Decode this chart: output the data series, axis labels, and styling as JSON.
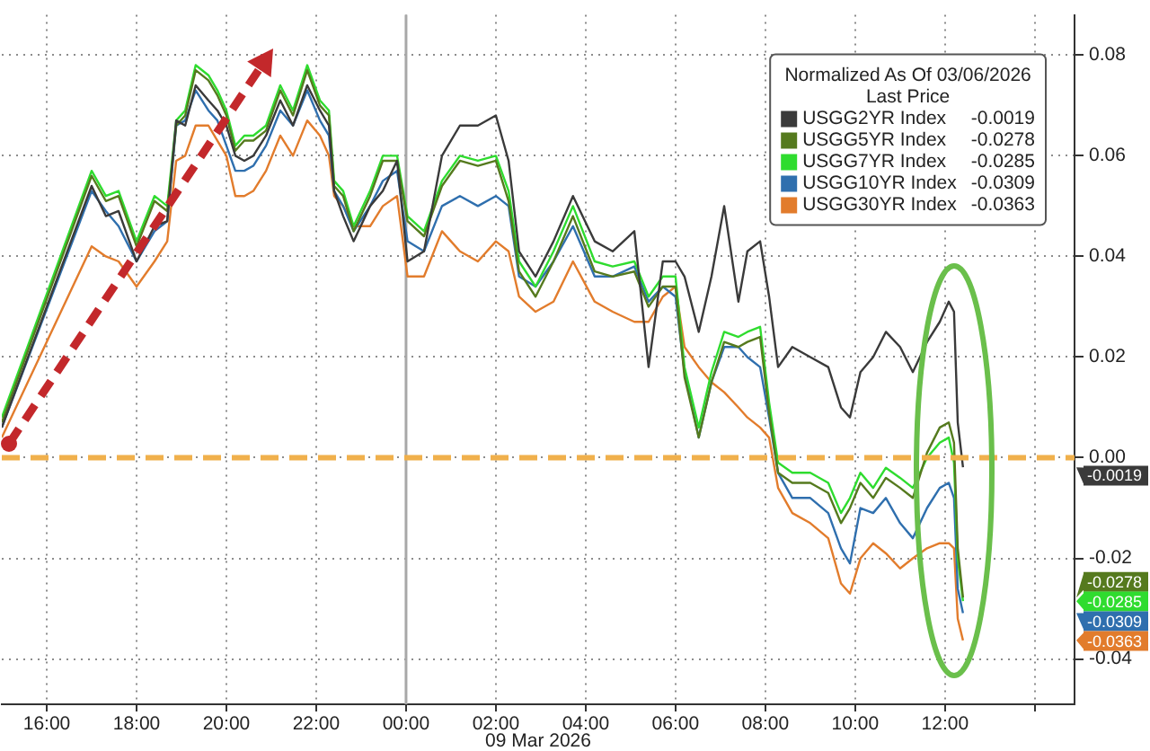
{
  "chart_data": {
    "type": "line",
    "legend_title": "Normalized As Of 03/06/2026\nLast Price",
    "xlabel": "09 Mar 2026",
    "x": [
      "2026-03-08T15:00",
      "2026-03-08T17:00",
      "2026-03-08T17:19",
      "2026-03-08T17:36",
      "2026-03-08T18:00",
      "2026-03-08T18:24",
      "2026-03-08T18:41",
      "2026-03-08T18:53",
      "2026-03-08T19:05",
      "2026-03-08T19:19",
      "2026-03-08T19:36",
      "2026-03-08T19:48",
      "2026-03-08T20:00",
      "2026-03-08T20:12",
      "2026-03-08T20:24",
      "2026-03-08T20:36",
      "2026-03-08T20:53",
      "2026-03-08T21:12",
      "2026-03-08T21:29",
      "2026-03-08T21:48",
      "2026-03-08T22:05",
      "2026-03-08T22:17",
      "2026-03-08T22:24",
      "2026-03-08T22:36",
      "2026-03-08T22:50",
      "2026-03-08T23:12",
      "2026-03-08T23:29",
      "2026-03-08T23:48",
      "2026-03-09T00:02",
      "2026-03-09T00:24",
      "2026-03-09T00:48",
      "2026-03-09T01:12",
      "2026-03-09T01:36",
      "2026-03-09T02:00",
      "2026-03-09T02:17",
      "2026-03-09T02:31",
      "2026-03-09T02:53",
      "2026-03-09T03:17",
      "2026-03-09T03:43",
      "2026-03-09T04:12",
      "2026-03-09T04:36",
      "2026-03-09T05:05",
      "2026-03-09T05:24",
      "2026-03-09T05:43",
      "2026-03-09T06:00",
      "2026-03-09T06:12",
      "2026-03-09T06:31",
      "2026-03-09T06:48",
      "2026-03-09T07:05",
      "2026-03-09T07:24",
      "2026-03-09T07:36",
      "2026-03-09T07:53",
      "2026-03-09T08:05",
      "2026-03-09T08:17",
      "2026-03-09T08:36",
      "2026-03-09T09:00",
      "2026-03-09T09:24",
      "2026-03-09T09:41",
      "2026-03-09T09:53",
      "2026-03-09T10:07",
      "2026-03-09T10:24",
      "2026-03-09T10:41",
      "2026-03-09T11:00",
      "2026-03-09T11:17",
      "2026-03-09T11:36",
      "2026-03-09T11:53",
      "2026-03-09T12:05",
      "2026-03-09T12:12",
      "2026-03-09T12:17",
      "2026-03-09T12:24"
    ],
    "series": [
      {
        "name": "USGG2YR Index",
        "color": "#3a3a3a",
        "values": [
          0.006,
          0.054,
          0.048,
          0.049,
          0.039,
          0.046,
          0.047,
          0.067,
          0.066,
          0.074,
          0.071,
          0.069,
          0.066,
          0.06,
          0.059,
          0.06,
          0.064,
          0.071,
          0.066,
          0.074,
          0.069,
          0.066,
          0.053,
          0.048,
          0.043,
          0.05,
          0.053,
          0.059,
          0.039,
          0.041,
          0.06,
          0.066,
          0.066,
          0.068,
          0.059,
          0.041,
          0.036,
          0.043,
          0.052,
          0.043,
          0.041,
          0.045,
          0.018,
          0.039,
          0.039,
          0.036,
          0.025,
          0.036,
          0.05,
          0.031,
          0.041,
          0.043,
          0.032,
          0.018,
          0.022,
          0.02,
          0.018,
          0.01,
          0.008,
          0.017,
          0.02,
          0.025,
          0.022,
          0.017,
          0.023,
          0.027,
          0.031,
          0.029,
          0.007,
          -0.0019
        ]
      },
      {
        "name": "USGG5YR Index",
        "color": "#557a1e",
        "values": [
          0.007,
          0.056,
          0.051,
          0.052,
          0.042,
          0.051,
          0.049,
          0.066,
          0.068,
          0.077,
          0.075,
          0.072,
          0.068,
          0.061,
          0.063,
          0.063,
          0.065,
          0.073,
          0.068,
          0.077,
          0.07,
          0.068,
          0.054,
          0.052,
          0.045,
          0.052,
          0.059,
          0.059,
          0.047,
          0.044,
          0.054,
          0.059,
          0.058,
          0.059,
          0.051,
          0.037,
          0.032,
          0.039,
          0.048,
          0.037,
          0.036,
          0.037,
          0.03,
          0.034,
          0.034,
          0.016,
          0.004,
          0.015,
          0.023,
          0.022,
          0.023,
          0.024,
          0.009,
          -0.003,
          -0.005,
          -0.005,
          -0.007,
          -0.013,
          -0.01,
          -0.005,
          -0.008,
          -0.004,
          -0.006,
          -0.008,
          0.001,
          0.006,
          0.007,
          0.003,
          -0.018,
          -0.0278
        ]
      },
      {
        "name": "USGG7YR Index",
        "color": "#2fdc2f",
        "values": [
          0.008,
          0.057,
          0.052,
          0.053,
          0.043,
          0.052,
          0.05,
          0.067,
          0.069,
          0.078,
          0.076,
          0.073,
          0.069,
          0.062,
          0.064,
          0.064,
          0.066,
          0.074,
          0.069,
          0.078,
          0.071,
          0.069,
          0.055,
          0.053,
          0.046,
          0.053,
          0.06,
          0.06,
          0.048,
          0.045,
          0.055,
          0.06,
          0.059,
          0.06,
          0.053,
          0.039,
          0.034,
          0.041,
          0.05,
          0.039,
          0.038,
          0.039,
          0.032,
          0.036,
          0.036,
          0.018,
          0.006,
          0.017,
          0.025,
          0.024,
          0.025,
          0.026,
          0.011,
          -0.001,
          -0.003,
          -0.003,
          -0.005,
          -0.011,
          -0.008,
          -0.003,
          -0.006,
          -0.002,
          -0.004,
          -0.006,
          0,
          0.003,
          0.004,
          -0.001,
          -0.02,
          -0.0285
        ]
      },
      {
        "name": "USGG10YR Index",
        "color": "#2f6fae",
        "values": [
          0.006,
          0.053,
          0.049,
          0.046,
          0.039,
          0.045,
          0.047,
          0.066,
          0.067,
          0.073,
          0.069,
          0.067,
          0.062,
          0.057,
          0.057,
          0.058,
          0.062,
          0.069,
          0.066,
          0.073,
          0.067,
          0.064,
          0.053,
          0.05,
          0.045,
          0.05,
          0.055,
          0.057,
          0.043,
          0.041,
          0.05,
          0.052,
          0.05,
          0.052,
          0.05,
          0.036,
          0.034,
          0.039,
          0.046,
          0.036,
          0.036,
          0.038,
          0.031,
          0.034,
          0.032,
          0.017,
          0.004,
          0.015,
          0.022,
          0.022,
          0.02,
          0.018,
          0.008,
          -0.003,
          -0.008,
          -0.008,
          -0.011,
          -0.018,
          -0.021,
          -0.01,
          -0.011,
          -0.008,
          -0.013,
          -0.016,
          -0.01,
          -0.006,
          -0.005,
          -0.008,
          -0.026,
          -0.0309
        ]
      },
      {
        "name": "USGG30YR Index",
        "color": "#e27c2c",
        "values": [
          0.004,
          0.042,
          0.04,
          0.039,
          0.034,
          0.039,
          0.043,
          0.059,
          0.06,
          0.066,
          0.066,
          0.063,
          0.06,
          0.052,
          0.052,
          0.053,
          0.057,
          0.064,
          0.06,
          0.067,
          0.064,
          0.06,
          0.052,
          0.05,
          0.046,
          0.046,
          0.05,
          0.052,
          0.036,
          0.036,
          0.045,
          0.041,
          0.039,
          0.043,
          0.041,
          0.032,
          0.029,
          0.031,
          0.039,
          0.031,
          0.029,
          0.027,
          0.027,
          0.032,
          0.034,
          0.022,
          0.018,
          0.015,
          0.013,
          0.01,
          0.008,
          0.006,
          0.004,
          -0.006,
          -0.011,
          -0.013,
          -0.016,
          -0.025,
          -0.027,
          -0.02,
          -0.017,
          -0.019,
          -0.022,
          -0.02,
          -0.018,
          -0.017,
          -0.017,
          -0.018,
          -0.032,
          -0.0363
        ]
      }
    ],
    "xlim": [
      "2026-03-08T15:00",
      "2026-03-09T14:53"
    ],
    "xticks": [
      {
        "value": "2026-03-08T16:00",
        "label": "16:00"
      },
      {
        "value": "2026-03-08T18:00",
        "label": "18:00"
      },
      {
        "value": "2026-03-08T20:00",
        "label": "20:00"
      },
      {
        "value": "2026-03-08T22:00",
        "label": "22:00"
      },
      {
        "value": "2026-03-09T00:00",
        "label": "00:00"
      },
      {
        "value": "2026-03-09T02:00",
        "label": "02:00"
      },
      {
        "value": "2026-03-09T04:00",
        "label": "04:00"
      },
      {
        "value": "2026-03-09T06:00",
        "label": "06:00"
      },
      {
        "value": "2026-03-09T08:00",
        "label": "08:00"
      },
      {
        "value": "2026-03-09T10:00",
        "label": "10:00"
      },
      {
        "value": "2026-03-09T12:00",
        "label": "12:00"
      },
      {
        "value": "2026-03-09T14:00",
        "label": null
      }
    ],
    "ylim": [
      -0.049,
      0.088
    ],
    "yticks": [
      -0.04,
      -0.02,
      {
        "value": 0,
        "label": "0.00"
      },
      0.02,
      0.04,
      0.06,
      0.08
    ],
    "grid": true,
    "legend": "top right",
    "marker": "none",
    "ref_lines": [
      {
        "axis": "y",
        "value": 0,
        "color": "#f0b04c",
        "line_style": "dashed"
      },
      {
        "axis": "x",
        "value": "2026-03-09T00:00",
        "color": "#a8a8a8",
        "line_style": "solid"
      }
    ],
    "annotations": [
      "-0.0019",
      "-0.0278",
      "-0.0285",
      "-0.0309",
      "-0.0363"
    ]
  }
}
